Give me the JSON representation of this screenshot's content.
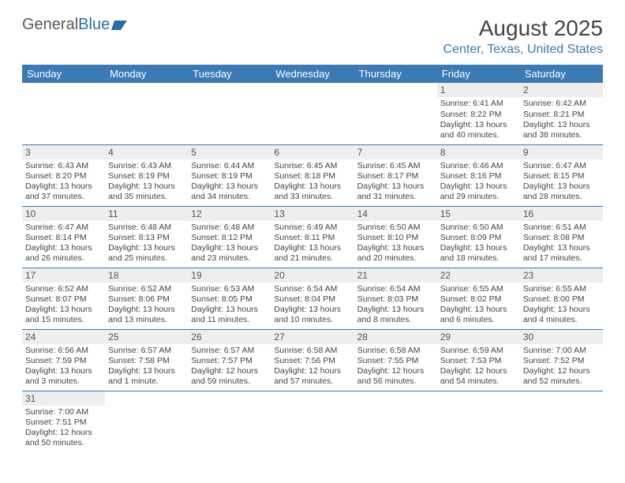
{
  "logo": {
    "word1": "General",
    "word2": "Blue"
  },
  "title": "August 2025",
  "location": "Center, Texas, United States",
  "colors": {
    "header_bg": "#3a7ab5",
    "header_text": "#ffffff",
    "accent": "#3a7ab5",
    "daynum_bg": "#eeeeee",
    "text": "#444444"
  },
  "layout": {
    "font_family": "Arial",
    "title_fontsize": 28,
    "location_fontsize": 16,
    "header_fontsize": 13,
    "daynum_fontsize": 12,
    "body_fontsize": 10.5
  },
  "weekdays": [
    "Sunday",
    "Monday",
    "Tuesday",
    "Wednesday",
    "Thursday",
    "Friday",
    "Saturday"
  ],
  "weeks": [
    [
      null,
      null,
      null,
      null,
      null,
      {
        "n": "1",
        "sr": "Sunrise: 6:41 AM",
        "ss": "Sunset: 8:22 PM",
        "dl": "Daylight: 13 hours and 40 minutes."
      },
      {
        "n": "2",
        "sr": "Sunrise: 6:42 AM",
        "ss": "Sunset: 8:21 PM",
        "dl": "Daylight: 13 hours and 38 minutes."
      }
    ],
    [
      {
        "n": "3",
        "sr": "Sunrise: 6:43 AM",
        "ss": "Sunset: 8:20 PM",
        "dl": "Daylight: 13 hours and 37 minutes."
      },
      {
        "n": "4",
        "sr": "Sunrise: 6:43 AM",
        "ss": "Sunset: 8:19 PM",
        "dl": "Daylight: 13 hours and 35 minutes."
      },
      {
        "n": "5",
        "sr": "Sunrise: 6:44 AM",
        "ss": "Sunset: 8:19 PM",
        "dl": "Daylight: 13 hours and 34 minutes."
      },
      {
        "n": "6",
        "sr": "Sunrise: 6:45 AM",
        "ss": "Sunset: 8:18 PM",
        "dl": "Daylight: 13 hours and 33 minutes."
      },
      {
        "n": "7",
        "sr": "Sunrise: 6:45 AM",
        "ss": "Sunset: 8:17 PM",
        "dl": "Daylight: 13 hours and 31 minutes."
      },
      {
        "n": "8",
        "sr": "Sunrise: 6:46 AM",
        "ss": "Sunset: 8:16 PM",
        "dl": "Daylight: 13 hours and 29 minutes."
      },
      {
        "n": "9",
        "sr": "Sunrise: 6:47 AM",
        "ss": "Sunset: 8:15 PM",
        "dl": "Daylight: 13 hours and 28 minutes."
      }
    ],
    [
      {
        "n": "10",
        "sr": "Sunrise: 6:47 AM",
        "ss": "Sunset: 8:14 PM",
        "dl": "Daylight: 13 hours and 26 minutes."
      },
      {
        "n": "11",
        "sr": "Sunrise: 6:48 AM",
        "ss": "Sunset: 8:13 PM",
        "dl": "Daylight: 13 hours and 25 minutes."
      },
      {
        "n": "12",
        "sr": "Sunrise: 6:48 AM",
        "ss": "Sunset: 8:12 PM",
        "dl": "Daylight: 13 hours and 23 minutes."
      },
      {
        "n": "13",
        "sr": "Sunrise: 6:49 AM",
        "ss": "Sunset: 8:11 PM",
        "dl": "Daylight: 13 hours and 21 minutes."
      },
      {
        "n": "14",
        "sr": "Sunrise: 6:50 AM",
        "ss": "Sunset: 8:10 PM",
        "dl": "Daylight: 13 hours and 20 minutes."
      },
      {
        "n": "15",
        "sr": "Sunrise: 6:50 AM",
        "ss": "Sunset: 8:09 PM",
        "dl": "Daylight: 13 hours and 18 minutes."
      },
      {
        "n": "16",
        "sr": "Sunrise: 6:51 AM",
        "ss": "Sunset: 8:08 PM",
        "dl": "Daylight: 13 hours and 17 minutes."
      }
    ],
    [
      {
        "n": "17",
        "sr": "Sunrise: 6:52 AM",
        "ss": "Sunset: 8:07 PM",
        "dl": "Daylight: 13 hours and 15 minutes."
      },
      {
        "n": "18",
        "sr": "Sunrise: 6:52 AM",
        "ss": "Sunset: 8:06 PM",
        "dl": "Daylight: 13 hours and 13 minutes."
      },
      {
        "n": "19",
        "sr": "Sunrise: 6:53 AM",
        "ss": "Sunset: 8:05 PM",
        "dl": "Daylight: 13 hours and 11 minutes."
      },
      {
        "n": "20",
        "sr": "Sunrise: 6:54 AM",
        "ss": "Sunset: 8:04 PM",
        "dl": "Daylight: 13 hours and 10 minutes."
      },
      {
        "n": "21",
        "sr": "Sunrise: 6:54 AM",
        "ss": "Sunset: 8:03 PM",
        "dl": "Daylight: 13 hours and 8 minutes."
      },
      {
        "n": "22",
        "sr": "Sunrise: 6:55 AM",
        "ss": "Sunset: 8:02 PM",
        "dl": "Daylight: 13 hours and 6 minutes."
      },
      {
        "n": "23",
        "sr": "Sunrise: 6:55 AM",
        "ss": "Sunset: 8:00 PM",
        "dl": "Daylight: 13 hours and 4 minutes."
      }
    ],
    [
      {
        "n": "24",
        "sr": "Sunrise: 6:56 AM",
        "ss": "Sunset: 7:59 PM",
        "dl": "Daylight: 13 hours and 3 minutes."
      },
      {
        "n": "25",
        "sr": "Sunrise: 6:57 AM",
        "ss": "Sunset: 7:58 PM",
        "dl": "Daylight: 13 hours and 1 minute."
      },
      {
        "n": "26",
        "sr": "Sunrise: 6:57 AM",
        "ss": "Sunset: 7:57 PM",
        "dl": "Daylight: 12 hours and 59 minutes."
      },
      {
        "n": "27",
        "sr": "Sunrise: 6:58 AM",
        "ss": "Sunset: 7:56 PM",
        "dl": "Daylight: 12 hours and 57 minutes."
      },
      {
        "n": "28",
        "sr": "Sunrise: 6:58 AM",
        "ss": "Sunset: 7:55 PM",
        "dl": "Daylight: 12 hours and 56 minutes."
      },
      {
        "n": "29",
        "sr": "Sunrise: 6:59 AM",
        "ss": "Sunset: 7:53 PM",
        "dl": "Daylight: 12 hours and 54 minutes."
      },
      {
        "n": "30",
        "sr": "Sunrise: 7:00 AM",
        "ss": "Sunset: 7:52 PM",
        "dl": "Daylight: 12 hours and 52 minutes."
      }
    ],
    [
      {
        "n": "31",
        "sr": "Sunrise: 7:00 AM",
        "ss": "Sunset: 7:51 PM",
        "dl": "Daylight: 12 hours and 50 minutes."
      },
      null,
      null,
      null,
      null,
      null,
      null
    ]
  ]
}
